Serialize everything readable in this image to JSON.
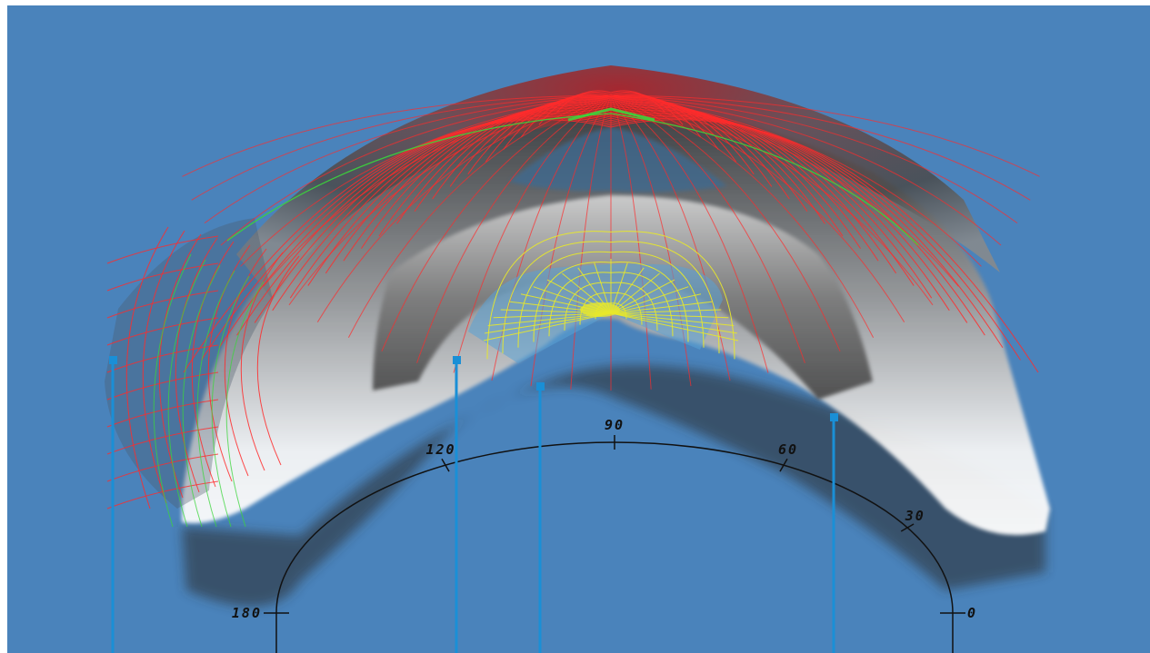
{
  "colors": {
    "background": "#4a83bb",
    "outer_mesh": "#ff2b2b",
    "inner_mesh": "#3bd63b",
    "center_mesh": "#e8e82a",
    "marker": "#1a8fd6",
    "axis": "#111111"
  },
  "protractor": {
    "ticks": [
      {
        "angle": 180,
        "label": "180"
      },
      {
        "angle": 120,
        "label": "120"
      },
      {
        "angle": 90,
        "label": "90"
      },
      {
        "angle": 60,
        "label": "60"
      },
      {
        "angle": 30,
        "label": "30"
      },
      {
        "angle": 0,
        "label": "0"
      }
    ]
  }
}
